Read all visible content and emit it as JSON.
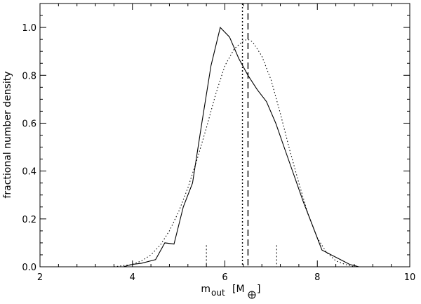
{
  "chart_data": {
    "type": "line",
    "title": "",
    "xlabel_main": "m",
    "xlabel_sub": "out",
    "xlabel_unit": "[M",
    "xlabel_unit_close": "]",
    "ylabel": "fractional number density",
    "xlim": [
      2,
      10
    ],
    "ylim": [
      0,
      1.1
    ],
    "xticks": [
      2,
      4,
      6,
      8,
      10
    ],
    "yticks": [
      0.0,
      0.2,
      0.4,
      0.6,
      0.8,
      1.0
    ],
    "xtick_labels": [
      "2",
      "4",
      "6",
      "8",
      "10"
    ],
    "ytick_labels": [
      "0.0",
      "0.2",
      "0.4",
      "0.6",
      "0.8",
      "1.0"
    ],
    "grid": false,
    "series": [
      {
        "style": "solid",
        "x": [
          2.3,
          2.5,
          3.0,
          3.5,
          3.8,
          4.0,
          4.2,
          4.5,
          4.7,
          4.9,
          5.1,
          5.3,
          5.5,
          5.7,
          5.9,
          6.1,
          6.3,
          6.5,
          6.7,
          6.9,
          7.1,
          7.3,
          7.5,
          7.7,
          7.9,
          8.1,
          8.3,
          8.5,
          8.7,
          8.9,
          9.0
        ],
        "y": [
          0.0,
          0.0,
          0.0,
          0.0,
          0.0,
          0.01,
          0.015,
          0.03,
          0.1,
          0.095,
          0.25,
          0.35,
          0.6,
          0.84,
          1.0,
          0.96,
          0.87,
          0.8,
          0.74,
          0.69,
          0.6,
          0.49,
          0.38,
          0.27,
          0.17,
          0.07,
          0.05,
          0.03,
          0.01,
          0.0,
          0.0
        ]
      },
      {
        "style": "dotted",
        "x": [
          3.6,
          3.8,
          4.0,
          4.2,
          4.4,
          4.6,
          4.8,
          5.0,
          5.2,
          5.4,
          5.6,
          5.8,
          6.0,
          6.2,
          6.4,
          6.5,
          6.6,
          6.8,
          7.0,
          7.2,
          7.4,
          7.6,
          7.8,
          8.0,
          8.2,
          8.4,
          8.6,
          8.8
        ],
        "y": [
          0.0,
          0.005,
          0.01,
          0.025,
          0.05,
          0.09,
          0.15,
          0.23,
          0.33,
          0.45,
          0.58,
          0.72,
          0.84,
          0.91,
          0.945,
          0.95,
          0.94,
          0.88,
          0.78,
          0.64,
          0.49,
          0.35,
          0.22,
          0.12,
          0.06,
          0.025,
          0.01,
          0.0
        ]
      }
    ],
    "vertical_lines": [
      {
        "style": "dotted",
        "x": 6.38
      },
      {
        "style": "dashed",
        "x": 6.5
      }
    ],
    "short_markers": [
      {
        "style": "dotted",
        "x": 5.6,
        "y_top": 0.09
      },
      {
        "style": "dotted",
        "x": 7.12,
        "y_top": 0.09
      }
    ],
    "unit_symbol": "earth-mass-symbol"
  }
}
